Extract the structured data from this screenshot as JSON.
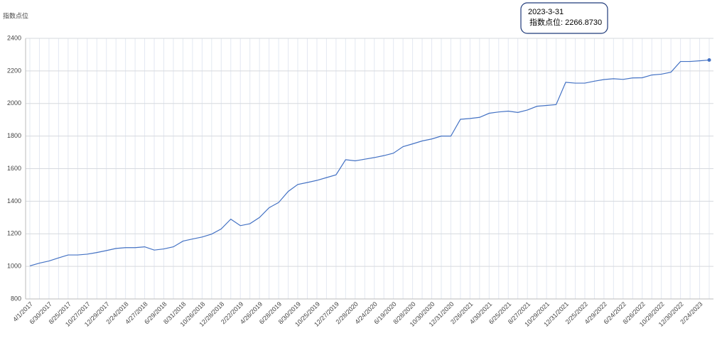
{
  "chart_data": {
    "type": "line",
    "y_label": "指数点位",
    "categories": [
      "4/1/2017",
      null,
      "6/30/2017",
      null,
      "8/25/2017",
      null,
      "10/27/2017",
      null,
      "12/29/2017",
      null,
      "2/24/2018",
      null,
      "4/27/2018",
      null,
      "6/29/2018",
      null,
      "8/31/2018",
      null,
      "10/26/2018",
      null,
      "12/28/2018",
      null,
      "2/22/2019",
      null,
      "4/26/2019",
      null,
      "6/28/2019",
      null,
      "8/30/2019",
      null,
      "10/25/2019",
      null,
      "12/27/2019",
      null,
      "2/28/2020",
      null,
      "4/24/2020",
      null,
      "6/19/2020",
      null,
      "8/28/2020",
      null,
      "10/30/2020",
      null,
      "12/31/2020",
      null,
      "2/26/2021",
      null,
      "4/30/2021",
      null,
      "6/25/2021",
      null,
      "8/27/2021",
      null,
      "10/29/2021",
      null,
      "12/31/2021",
      null,
      "2/25/2022",
      null,
      "4/29/2022",
      null,
      "6/24/2022",
      null,
      "8/26/2022",
      null,
      "10/28/2022",
      null,
      "12/30/2022",
      null,
      "2/24/2023",
      null
    ],
    "series": [
      {
        "name": "指数点位",
        "color": "#4472c4",
        "values": [
          1003,
          1020,
          1033,
          1052,
          1070,
          1070,
          1075,
          1085,
          1097,
          1110,
          1115,
          1115,
          1120,
          1100,
          1107,
          1120,
          1155,
          1168,
          1180,
          1198,
          1230,
          1290,
          1250,
          1262,
          1300,
          1360,
          1392,
          1460,
          1503,
          1515,
          1528,
          1545,
          1562,
          1655,
          1648,
          1658,
          1668,
          1680,
          1695,
          1735,
          1752,
          1770,
          1782,
          1800,
          1800,
          1903,
          1908,
          1915,
          1940,
          1948,
          1953,
          1945,
          1960,
          1983,
          1988,
          1993,
          2130,
          2125,
          2125,
          2137,
          2147,
          2152,
          2148,
          2157,
          2158,
          2175,
          2180,
          2192,
          2258,
          2258,
          2262,
          2266.873
        ]
      }
    ],
    "ylim": [
      800,
      2400
    ],
    "yticks": [
      800,
      1000,
      1200,
      1400,
      1600,
      1800,
      2000,
      2200,
      2400
    ],
    "grid": true,
    "tooltip": {
      "date": "2023-3-31",
      "text": "指数点位: 2266.8730"
    }
  }
}
